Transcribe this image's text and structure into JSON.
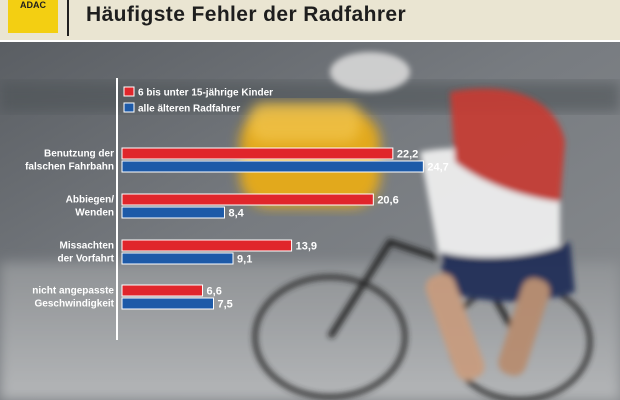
{
  "header": {
    "title": "Häufigste Fehler der Radfahrer",
    "badge": "ADAC"
  },
  "colors": {
    "header_bg": "#eae5d2",
    "badge_yellow": "#f3cf12",
    "series_kids": "#e0262b",
    "series_adults": "#1d5aa8"
  },
  "chart_data": {
    "type": "bar",
    "orientation": "horizontal",
    "title": "Häufigste Fehler der Radfahrer",
    "categories": [
      [
        "Benutzung der",
        "falschen Fahrbahn"
      ],
      [
        "Abbiegen/",
        "Wenden"
      ],
      [
        "Missachten",
        "der Vorfahrt"
      ],
      [
        "nicht angepasste",
        "Geschwindigkeit"
      ]
    ],
    "series": [
      {
        "name": "6 bis unter 15-jährige Kinder",
        "color": "#e0262b",
        "values": [
          22.2,
          20.6,
          13.9,
          6.6
        ],
        "labels": [
          "22,2",
          "20,6",
          "13,9",
          "6,6"
        ]
      },
      {
        "name": "alle älteren Radfahrer",
        "color": "#1d5aa8",
        "values": [
          24.7,
          8.4,
          9.1,
          7.5
        ],
        "labels": [
          "24,7",
          "8,4",
          "9,1",
          "7,5"
        ]
      }
    ],
    "xlim": [
      0,
      25
    ],
    "legend_position": "top-left",
    "grid": false
  }
}
